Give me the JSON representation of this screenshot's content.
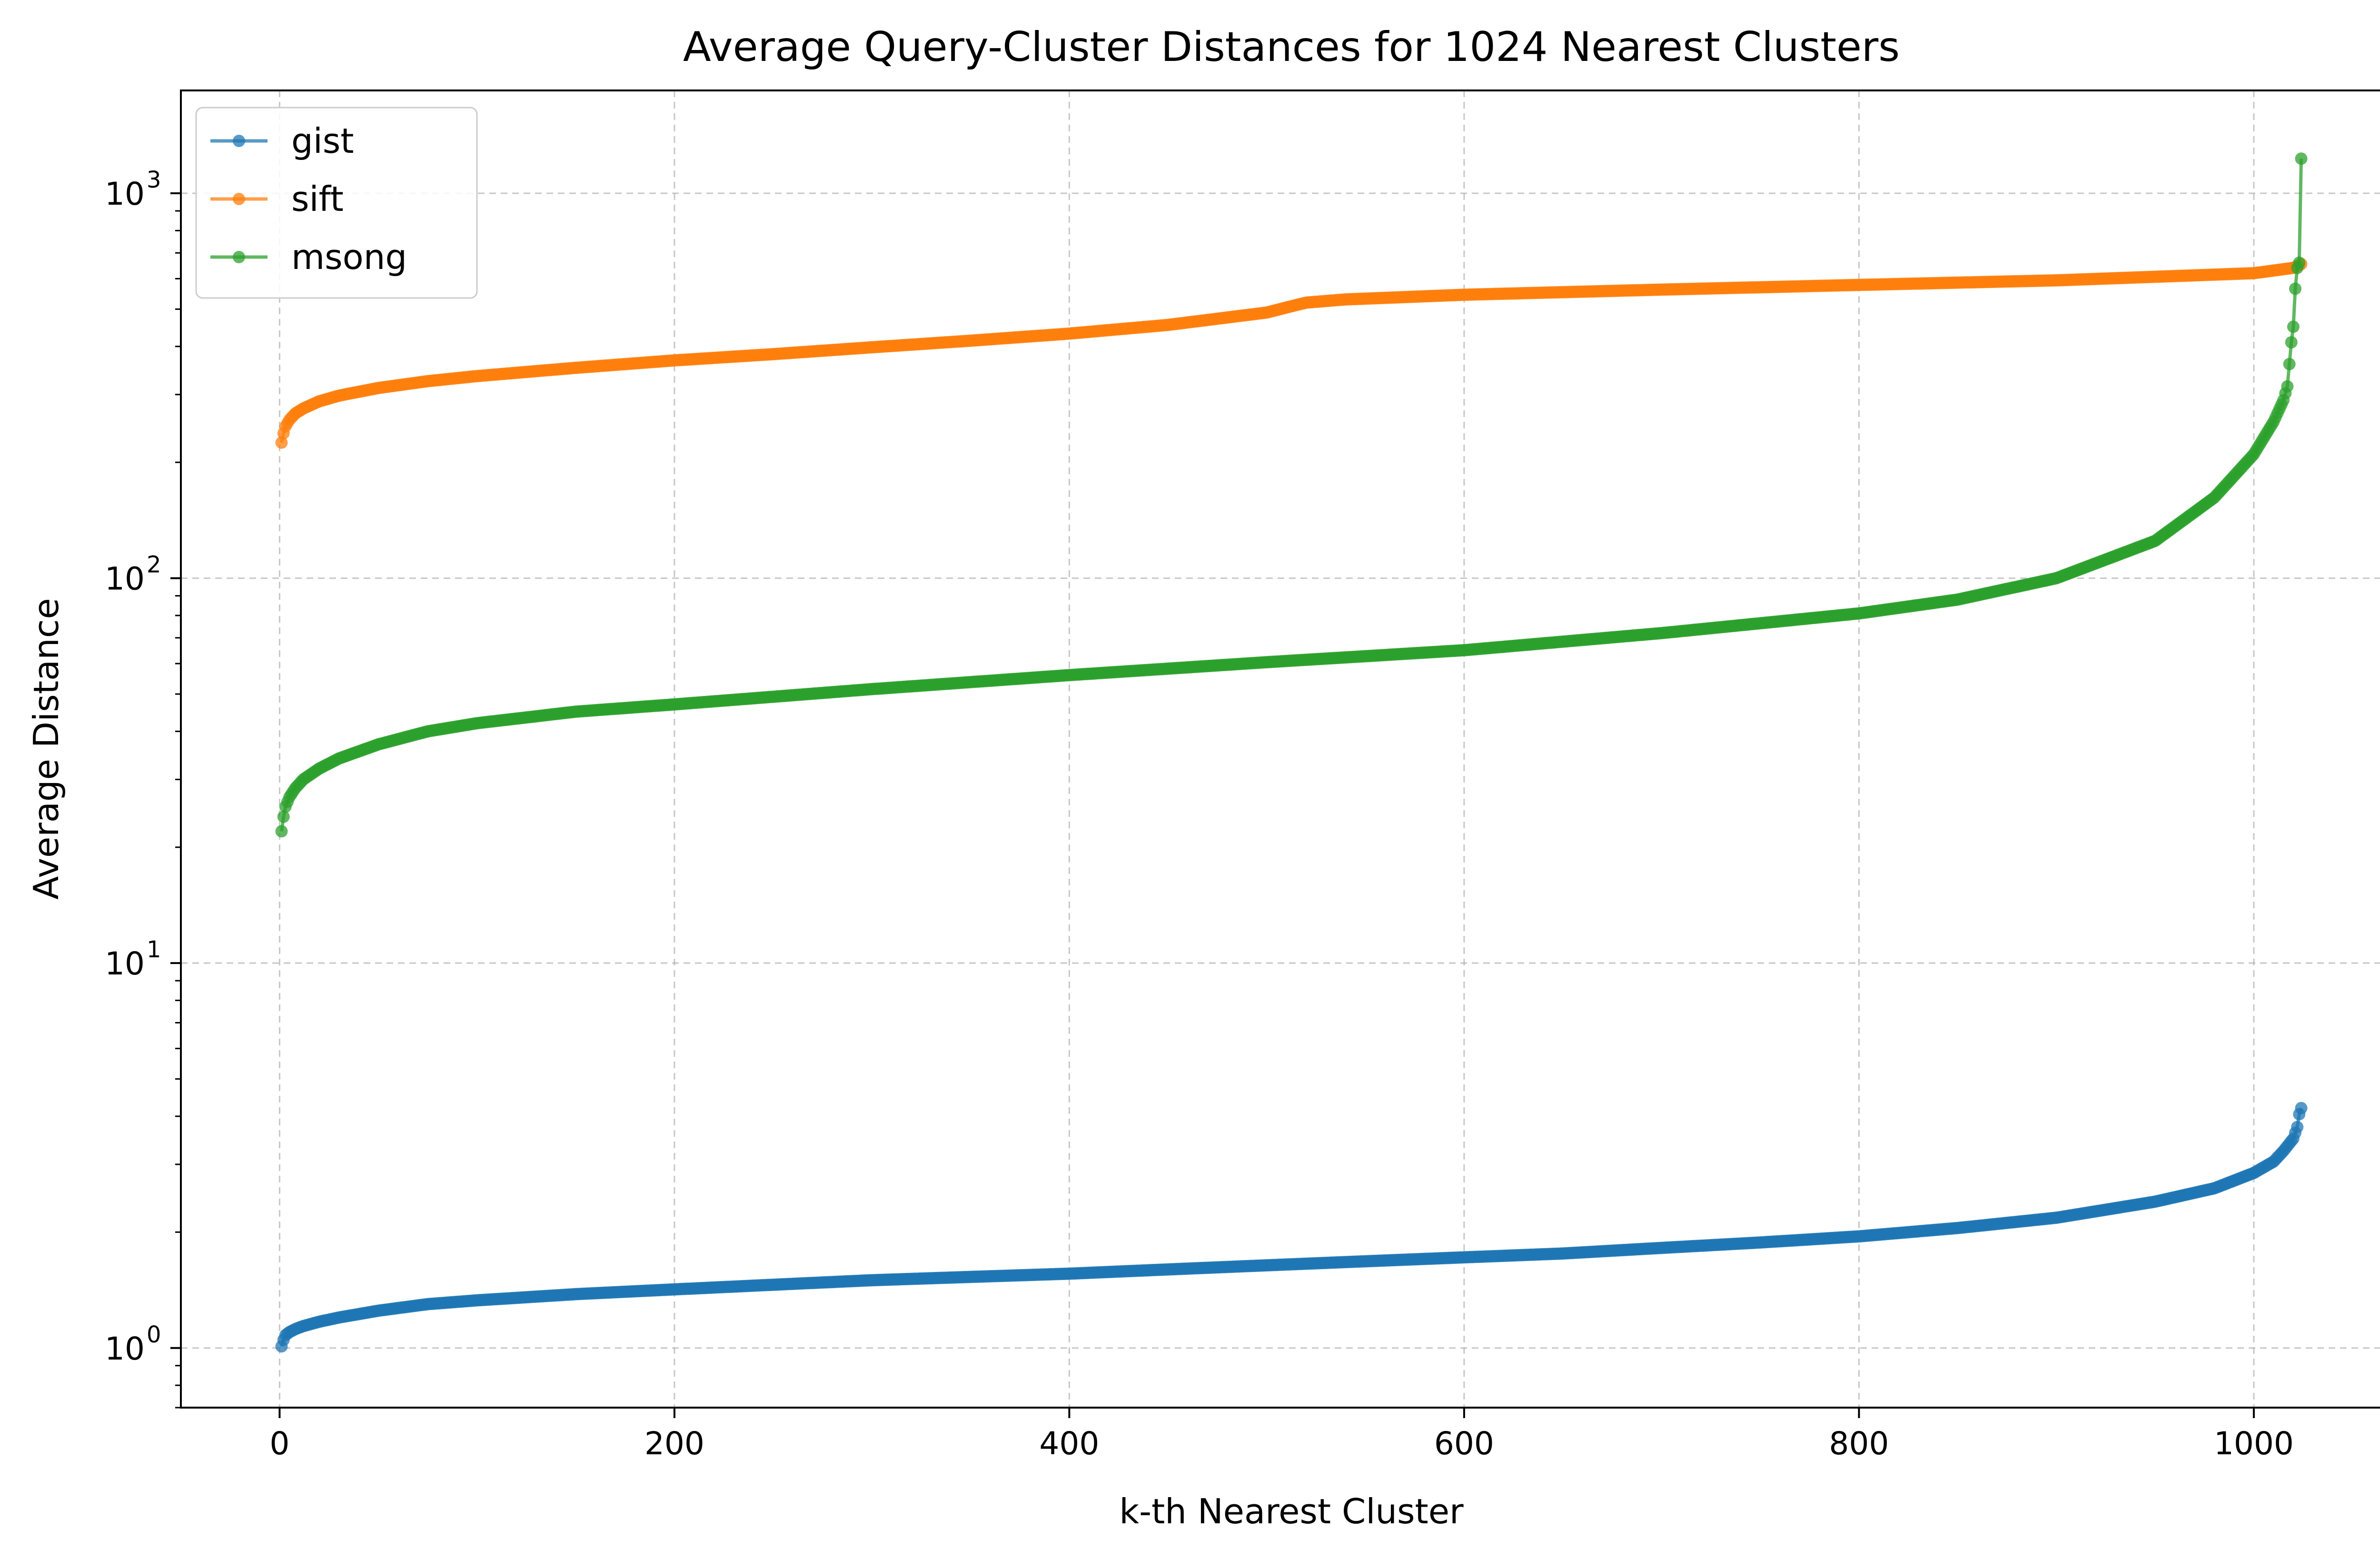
{
  "chart_data": {
    "type": "line",
    "title": "Average Query-Cluster Distances for 1024 Nearest Clusters",
    "xlabel": "k-th Nearest Cluster",
    "ylabel": "Average Distance",
    "xlim": [
      -50,
      1075
    ],
    "ylim": [
      0.7,
      1850
    ],
    "yscale": "log",
    "x_ticks": [
      0,
      200,
      400,
      600,
      800,
      1000
    ],
    "y_ticks": [
      {
        "value": 1,
        "base": "10",
        "exp": "0"
      },
      {
        "value": 10,
        "base": "10",
        "exp": "1"
      },
      {
        "value": 100,
        "base": "10",
        "exp": "2"
      },
      {
        "value": 1000,
        "base": "10",
        "exp": "3"
      }
    ],
    "grid": true,
    "legend_position": "top-left",
    "series": [
      {
        "name": "gist",
        "color": "#1f77b4",
        "x": [
          1,
          2,
          3,
          5,
          8,
          12,
          20,
          30,
          50,
          75,
          100,
          150,
          200,
          250,
          300,
          350,
          400,
          450,
          500,
          550,
          600,
          650,
          700,
          750,
          800,
          850,
          900,
          950,
          980,
          1000,
          1010,
          1015,
          1020,
          1022,
          1023,
          1024
        ],
        "y": [
          1.01,
          1.05,
          1.08,
          1.1,
          1.12,
          1.14,
          1.17,
          1.2,
          1.25,
          1.3,
          1.33,
          1.38,
          1.42,
          1.46,
          1.5,
          1.53,
          1.56,
          1.6,
          1.64,
          1.68,
          1.72,
          1.76,
          1.82,
          1.88,
          1.95,
          2.05,
          2.18,
          2.4,
          2.6,
          2.85,
          3.05,
          3.25,
          3.5,
          3.75,
          4.05,
          4.2
        ]
      },
      {
        "name": "sift",
        "color": "#ff7f0e",
        "x": [
          1,
          2,
          3,
          5,
          8,
          12,
          20,
          30,
          50,
          75,
          100,
          150,
          200,
          250,
          300,
          350,
          400,
          450,
          500,
          510,
          520,
          540,
          600,
          700,
          800,
          900,
          1000,
          1020,
          1024
        ],
        "y": [
          225,
          238,
          248,
          258,
          268,
          276,
          288,
          298,
          312,
          325,
          335,
          352,
          368,
          382,
          398,
          414,
          432,
          455,
          490,
          505,
          520,
          530,
          545,
          562,
          578,
          594,
          620,
          640,
          655
        ]
      },
      {
        "name": "msong",
        "color": "#2ca02c",
        "x": [
          1,
          2,
          3,
          5,
          8,
          12,
          20,
          30,
          50,
          75,
          100,
          150,
          200,
          300,
          400,
          500,
          600,
          700,
          800,
          850,
          900,
          950,
          980,
          1000,
          1010,
          1015,
          1017,
          1018,
          1019,
          1020,
          1021,
          1022,
          1023,
          1024
        ],
        "y": [
          22,
          24,
          25.5,
          27,
          28.5,
          30,
          32,
          34,
          37,
          40,
          42,
          45,
          47,
          51.5,
          56,
          60.5,
          65,
          72,
          81,
          88,
          100,
          125,
          162,
          210,
          255,
          290,
          315,
          360,
          410,
          450,
          565,
          640,
          660,
          1230
        ]
      }
    ]
  }
}
